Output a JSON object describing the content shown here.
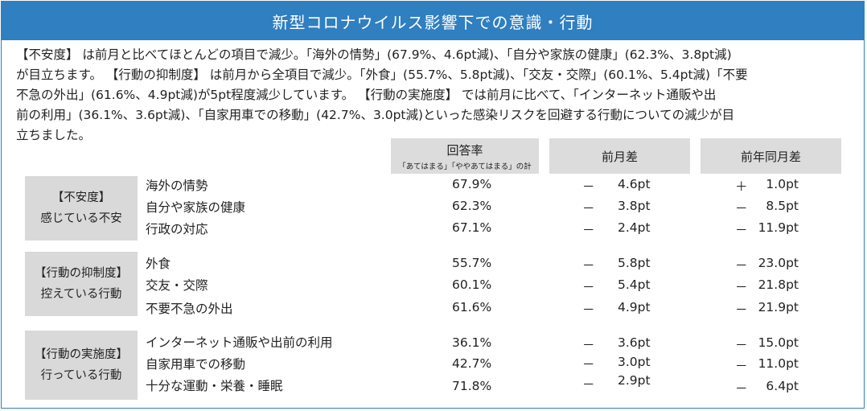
{
  "title": "新型コロナウイルス影響下での意識・行動",
  "intro_lines": [
    "【不安度】 は前月と比べてほとんどの項目で減少。「海外の情勢」(67.9%、4.6pt減)、「自分や家族の健康」(62.3%、3.8pt減)",
    "が目立ちます。 【行動の抑制度】 は前月から全項目で減少。「外食」(55.7%、5.8pt減)、「交友・交際」(60.1%、5.4pt減)「不要",
    "不急の外出」(61.6%、4.9pt減)が5pt程度減少しています。 【行動の実施度】 では前月に比べて、「インターネット通販や出",
    "前の利用」(36.1%、3.6pt減)、「自家用車での移動」(42.7%、3.0pt減)といった感染リスクを回避する行動についての減少が目",
    "立ちました。"
  ],
  "headers": {
    "rate": "回答率",
    "rate_sub": "「あてはまる」「ややあてはまる」の計",
    "mom": "前月差",
    "yoy": "前年同月差"
  },
  "groups": [
    {
      "label1": "【不安度】",
      "label2": "感じている不安",
      "rows": [
        {
          "item": "海外の情勢",
          "rate": "67.9%",
          "mom_sign": "－",
          "mom": "4.6pt",
          "yoy_sign": "＋",
          "yoy": "1.0pt"
        },
        {
          "item": "自分や家族の健康",
          "rate": "62.3%",
          "mom_sign": "－",
          "mom": "3.8pt",
          "yoy_sign": "－",
          "yoy": "8.5pt"
        },
        {
          "item": "行政の対応",
          "rate": "67.1%",
          "mom_sign": "－",
          "mom": "2.4pt",
          "yoy_sign": "－",
          "yoy": "11.9pt"
        }
      ]
    },
    {
      "label1": "【行動の抑制度】",
      "label2": "控えている行動",
      "rows": [
        {
          "item": "外食",
          "rate": "55.7%",
          "mom_sign": "－",
          "mom": "5.8pt",
          "yoy_sign": "－",
          "yoy": "23.0pt"
        },
        {
          "item": "交友・交際",
          "rate": "60.1%",
          "mom_sign": "－",
          "mom": "5.4pt",
          "yoy_sign": "－",
          "yoy": "21.8pt"
        },
        {
          "item": "不要不急の外出",
          "rate": "61.6%",
          "mom_sign": "－",
          "mom": "4.9pt",
          "yoy_sign": "－",
          "yoy": "21.9pt"
        }
      ]
    },
    {
      "label1": "【行動の実施度】",
      "label2": "行っている行動",
      "rows": [
        {
          "item": "インターネット通販や出前の利用",
          "rate": "36.1%",
          "mom_sign": "－",
          "mom": "3.6pt",
          "yoy_sign": "－",
          "yoy": "15.0pt"
        },
        {
          "item": "自家用車での移動",
          "rate": "42.7%",
          "mom_sign": "－",
          "mom": "3.0pt",
          "yoy_sign": "－",
          "yoy": "11.0pt"
        },
        {
          "item": "十分な運動・栄養・睡眠",
          "rate": "71.8%",
          "mom_sign": "－",
          "mom": "2.9pt",
          "yoy_sign": "－",
          "yoy": "6.4pt"
        }
      ]
    }
  ]
}
